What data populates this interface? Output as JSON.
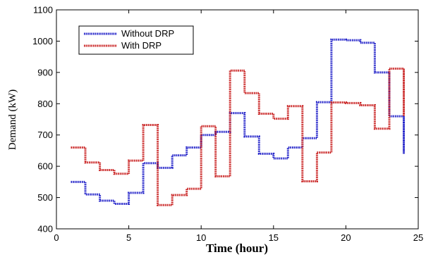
{
  "chart_data": {
    "type": "line",
    "step": true,
    "xlabel": "Time (hour)",
    "ylabel": "Demand (kW)",
    "xlim": [
      0,
      25
    ],
    "ylim": [
      400,
      1100
    ],
    "xticks": [
      "0",
      "5",
      "10",
      "15",
      "20",
      "25"
    ],
    "yticks": [
      "400",
      "500",
      "600",
      "700",
      "800",
      "900",
      "1000",
      "1100"
    ],
    "grid": false,
    "legend_position": "top-left",
    "series": [
      {
        "name": "Without DRP",
        "color": "#1f1fc8",
        "x": [
          1,
          2,
          3,
          4,
          5,
          6,
          7,
          8,
          9,
          10,
          11,
          12,
          13,
          14,
          15,
          16,
          17,
          18,
          19,
          20,
          21,
          22,
          23,
          24
        ],
        "values": [
          550,
          510,
          490,
          480,
          515,
          610,
          595,
          635,
          660,
          700,
          710,
          770,
          695,
          640,
          625,
          660,
          690,
          805,
          1005,
          1003,
          995,
          900,
          760,
          640
        ]
      },
      {
        "name": "With DRP",
        "color": "#c81e1e",
        "x": [
          1,
          2,
          3,
          4,
          5,
          6,
          7,
          8,
          9,
          10,
          11,
          12,
          13,
          14,
          15,
          16,
          17,
          18,
          19,
          20,
          21,
          22,
          23,
          24
        ],
        "values": [
          660,
          612,
          588,
          576,
          618,
          732,
          476,
          508,
          528,
          728,
          568,
          906,
          834,
          768,
          752,
          792,
          552,
          644,
          804,
          802,
          795,
          720,
          912,
          760
        ]
      }
    ]
  }
}
